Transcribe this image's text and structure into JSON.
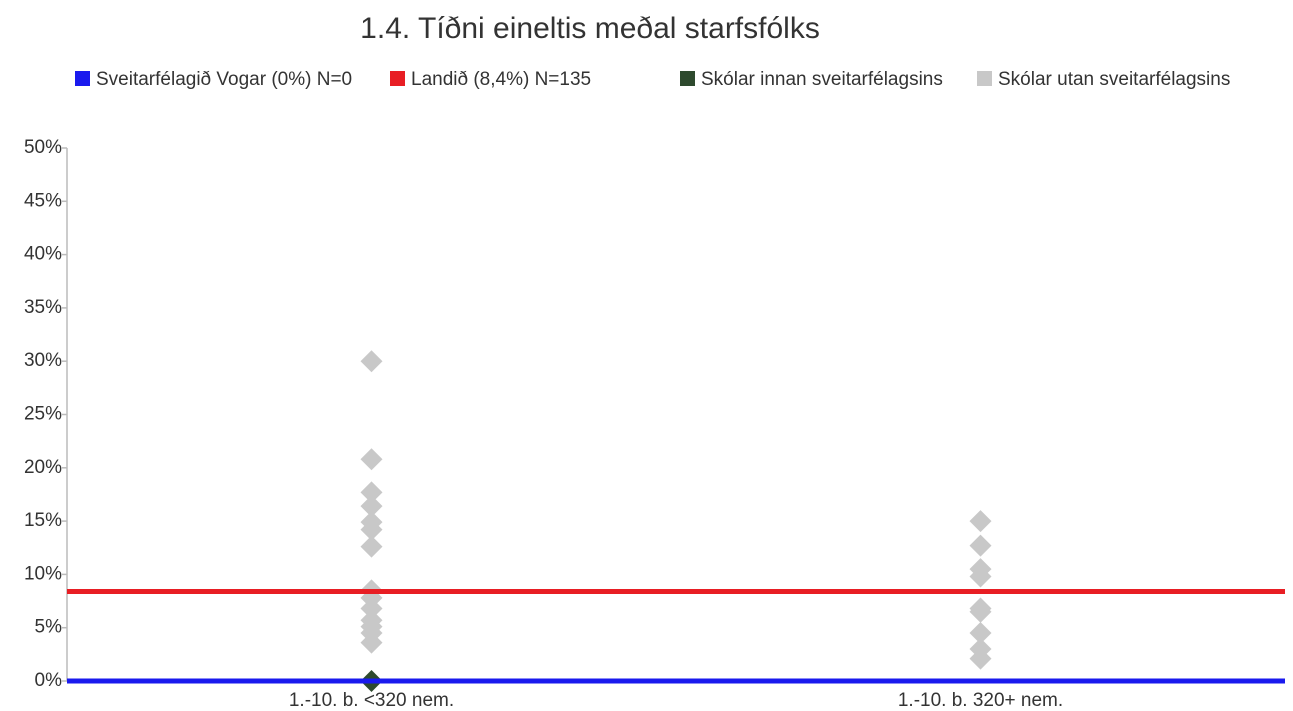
{
  "chart_data": {
    "type": "strip",
    "title": "1.4. Tíðni eineltis meðal starfsfólks",
    "categories": [
      "1.-10. b. <320 nem.",
      "1.-10. b. 320+ nem."
    ],
    "ylim": [
      0,
      50
    ],
    "yticks": [
      {
        "value": 0,
        "label": "0%"
      },
      {
        "value": 5,
        "label": "5%"
      },
      {
        "value": 10,
        "label": "10%"
      },
      {
        "value": 15,
        "label": "15%"
      },
      {
        "value": 20,
        "label": "20%"
      },
      {
        "value": 25,
        "label": "25%"
      },
      {
        "value": 30,
        "label": "30%"
      },
      {
        "value": 35,
        "label": "35%"
      },
      {
        "value": 40,
        "label": "40%"
      },
      {
        "value": 45,
        "label": "45%"
      },
      {
        "value": 50,
        "label": "50%"
      }
    ],
    "series": [
      {
        "name": "Sveitarfélagið Vogar (0%) N=0",
        "color": "#1a1aee",
        "kind": "reference",
        "value": 0
      },
      {
        "name": "Landið (8,4%) N=135",
        "color": "#e81e24",
        "kind": "reference",
        "value": 8.4
      },
      {
        "name": "Skólar innan sveitarfélagsins",
        "color": "#2e4a2e",
        "kind": "points",
        "values": [
          [
            0
          ],
          []
        ]
      },
      {
        "name": "Skólar utan sveitarfélagsins",
        "color": "#c8c8c8",
        "kind": "points",
        "values": [
          [
            30,
            20.8,
            17.7,
            16.4,
            14.9,
            14.2,
            12.6,
            8.5,
            7.8,
            6.8,
            5.7,
            5.1,
            4.5,
            3.6
          ],
          [
            15,
            12.7,
            10.5,
            9.8,
            6.8,
            6.5,
            4.5,
            3,
            2.1
          ]
        ]
      }
    ]
  }
}
